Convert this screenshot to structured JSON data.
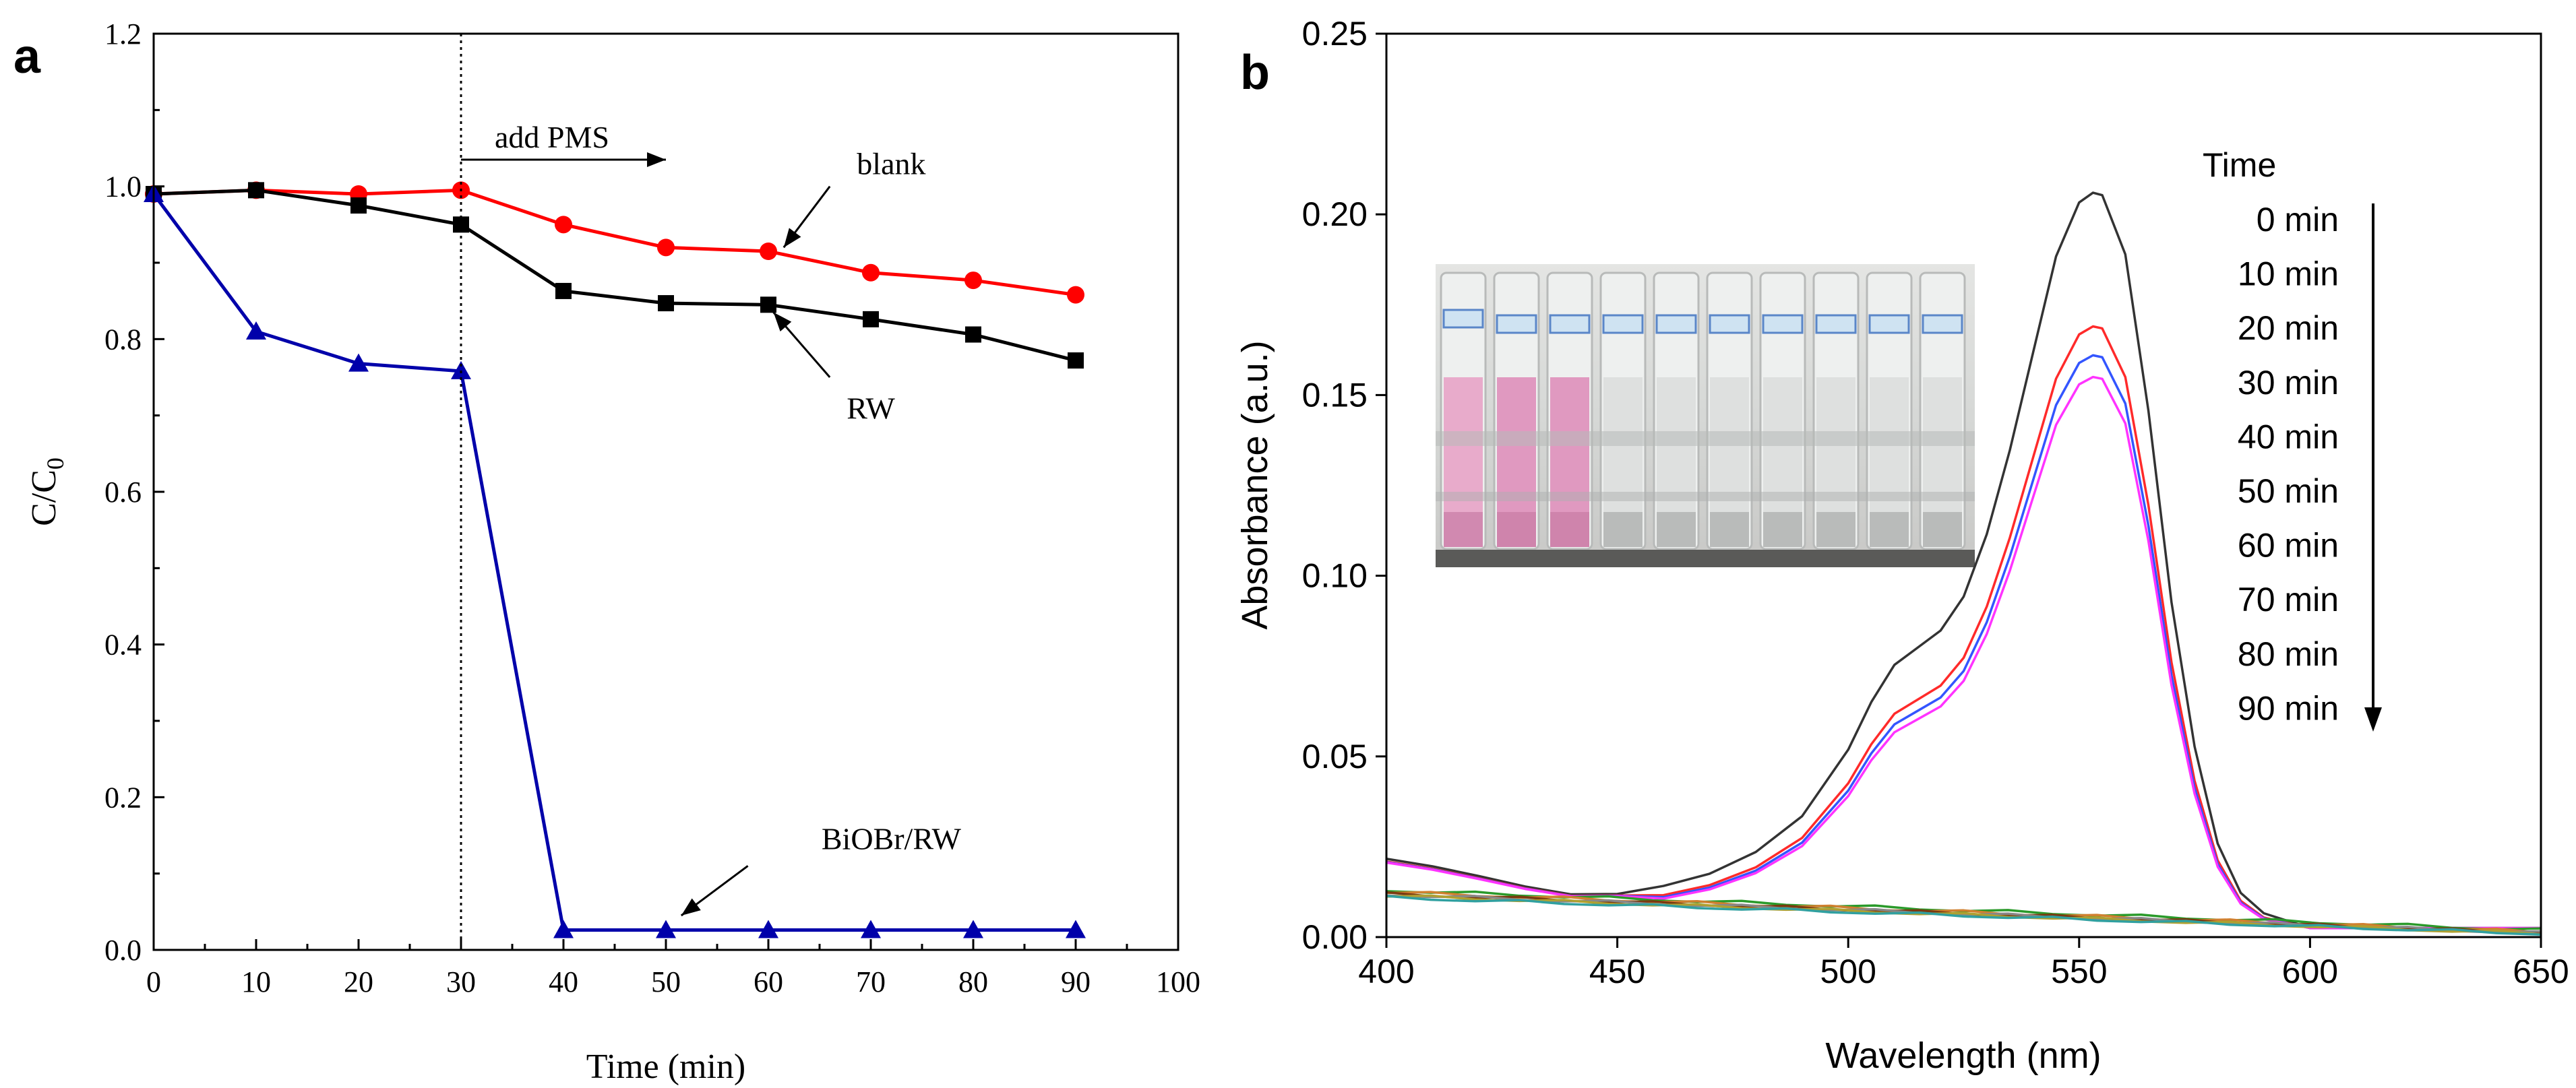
{
  "chart_data": [
    {
      "panel": "a",
      "type": "line",
      "xlabel": "Time (min)",
      "ylabel_main": "C/C",
      "ylabel_sub": "0",
      "xlim": [
        0,
        100
      ],
      "ylim": [
        0,
        1.2
      ],
      "xticks": [
        "0",
        "10",
        "20",
        "30",
        "40",
        "50",
        "60",
        "70",
        "80",
        "90",
        "100"
      ],
      "yticks": [
        "0.0",
        "0.2",
        "0.4",
        "0.6",
        "0.8",
        "1.0",
        "1.2"
      ],
      "grid": false,
      "vline_x": 30,
      "series": [
        {
          "name": "blank",
          "color": "#ff0000",
          "marker": "circle",
          "x": [
            0,
            10,
            20,
            30,
            40,
            50,
            60,
            70,
            80,
            90
          ],
          "values": [
            0.99,
            0.995,
            0.99,
            0.995,
            0.95,
            0.92,
            0.915,
            0.887,
            0.877,
            0.858
          ]
        },
        {
          "name": "RW",
          "color": "#000000",
          "marker": "square",
          "x": [
            0,
            10,
            20,
            30,
            40,
            50,
            60,
            70,
            80,
            90
          ],
          "values": [
            0.99,
            0.995,
            0.975,
            0.95,
            0.863,
            0.847,
            0.845,
            0.826,
            0.806,
            0.772
          ]
        },
        {
          "name": "BiOBr/RW",
          "color": "#0000aa",
          "marker": "triangle",
          "x": [
            0,
            10,
            20,
            30,
            40,
            50,
            60,
            70,
            80,
            90
          ],
          "values": [
            0.99,
            0.81,
            0.768,
            0.758,
            0.026,
            0.026,
            0.026,
            0.026,
            0.026,
            0.026
          ]
        }
      ],
      "annotations": [
        {
          "text": "add PMS",
          "arrow_from": [
            30,
            1.035
          ],
          "arrow_to": [
            50,
            1.035
          ]
        },
        {
          "text": "blank",
          "text_at": [
            72,
            1.03
          ],
          "arrow_from": [
            66,
            1.0
          ],
          "arrow_to": [
            61.5,
            0.92
          ]
        },
        {
          "text": "RW",
          "text_at": [
            70,
            0.71
          ],
          "arrow_from": [
            66,
            0.75
          ],
          "arrow_to": [
            60.5,
            0.835
          ]
        },
        {
          "text": "BiOBr/RW",
          "text_at": [
            72,
            0.146
          ],
          "arrow_from": [
            58,
            0.11
          ],
          "arrow_to": [
            51.5,
            0.045
          ]
        }
      ]
    },
    {
      "panel": "b",
      "type": "line",
      "xlabel": "Wavelength (nm)",
      "ylabel": "Absorbance (a.u.)",
      "xlim": [
        400,
        650
      ],
      "ylim": [
        0,
        0.25
      ],
      "xticks": [
        "400",
        "450",
        "500",
        "550",
        "600",
        "650"
      ],
      "yticks": [
        "0.00",
        "0.05",
        "0.10",
        "0.15",
        "0.20",
        "0.25"
      ],
      "grid": false,
      "legend_title": "Time",
      "legend_items": [
        "0  min",
        "10 min",
        "20 min",
        "30 min",
        "40 min",
        "50 min",
        "60 min",
        "70 min",
        "80 min",
        "90 min"
      ],
      "legend_placement": "right",
      "inset_photo": "row of ten vials, first three pink, remaining clear",
      "spectrum_x": [
        400,
        410,
        420,
        430,
        440,
        450,
        460,
        470,
        480,
        490,
        500,
        505,
        510,
        515,
        520,
        525,
        530,
        535,
        540,
        545,
        550,
        553,
        555,
        560,
        565,
        570,
        575,
        580,
        585,
        590,
        600,
        610,
        620,
        650
      ],
      "spectrum_shape": [
        0.0218,
        0.0197,
        0.017,
        0.0141,
        0.0119,
        0.012,
        0.0146,
        0.0181,
        0.0243,
        0.0345,
        0.0535,
        0.0671,
        0.0777,
        0.0826,
        0.0875,
        0.0972,
        0.115,
        0.139,
        0.1667,
        0.1943,
        0.2097,
        0.2125,
        0.2118,
        0.1949,
        0.1503,
        0.0956,
        0.0544,
        0.0267,
        0.0126,
        0.0068,
        0.0029,
        0.0024,
        0.0024,
        0.0024
      ],
      "series": [
        {
          "name": "0  min",
          "color": "#333333",
          "peak": 0.206
        },
        {
          "name": "10 min",
          "color": "#ff2a2a",
          "peak": 0.169
        },
        {
          "name": "20 min",
          "color": "#3355ff",
          "peak": 0.161
        },
        {
          "name": "30 min",
          "color": "#ff33ff",
          "peak": 0.155
        },
        {
          "name": "40 min",
          "color": "#2a9a2a",
          "flat": [
            0.013,
            0.002
          ]
        },
        {
          "name": "50 min",
          "color": "#d08030",
          "flat": [
            0.0125,
            0.0015
          ]
        },
        {
          "name": "60 min",
          "color": "#7a3a10",
          "flat": [
            0.012,
            0.0012
          ]
        },
        {
          "name": "70 min",
          "color": "#888888",
          "flat": [
            0.0118,
            0.0012
          ]
        },
        {
          "name": "80 min",
          "color": "#b0a030",
          "flat": [
            0.0115,
            0.001
          ]
        },
        {
          "name": "90 min",
          "color": "#30a0a0",
          "flat": [
            0.011,
            0.001
          ]
        }
      ]
    }
  ]
}
